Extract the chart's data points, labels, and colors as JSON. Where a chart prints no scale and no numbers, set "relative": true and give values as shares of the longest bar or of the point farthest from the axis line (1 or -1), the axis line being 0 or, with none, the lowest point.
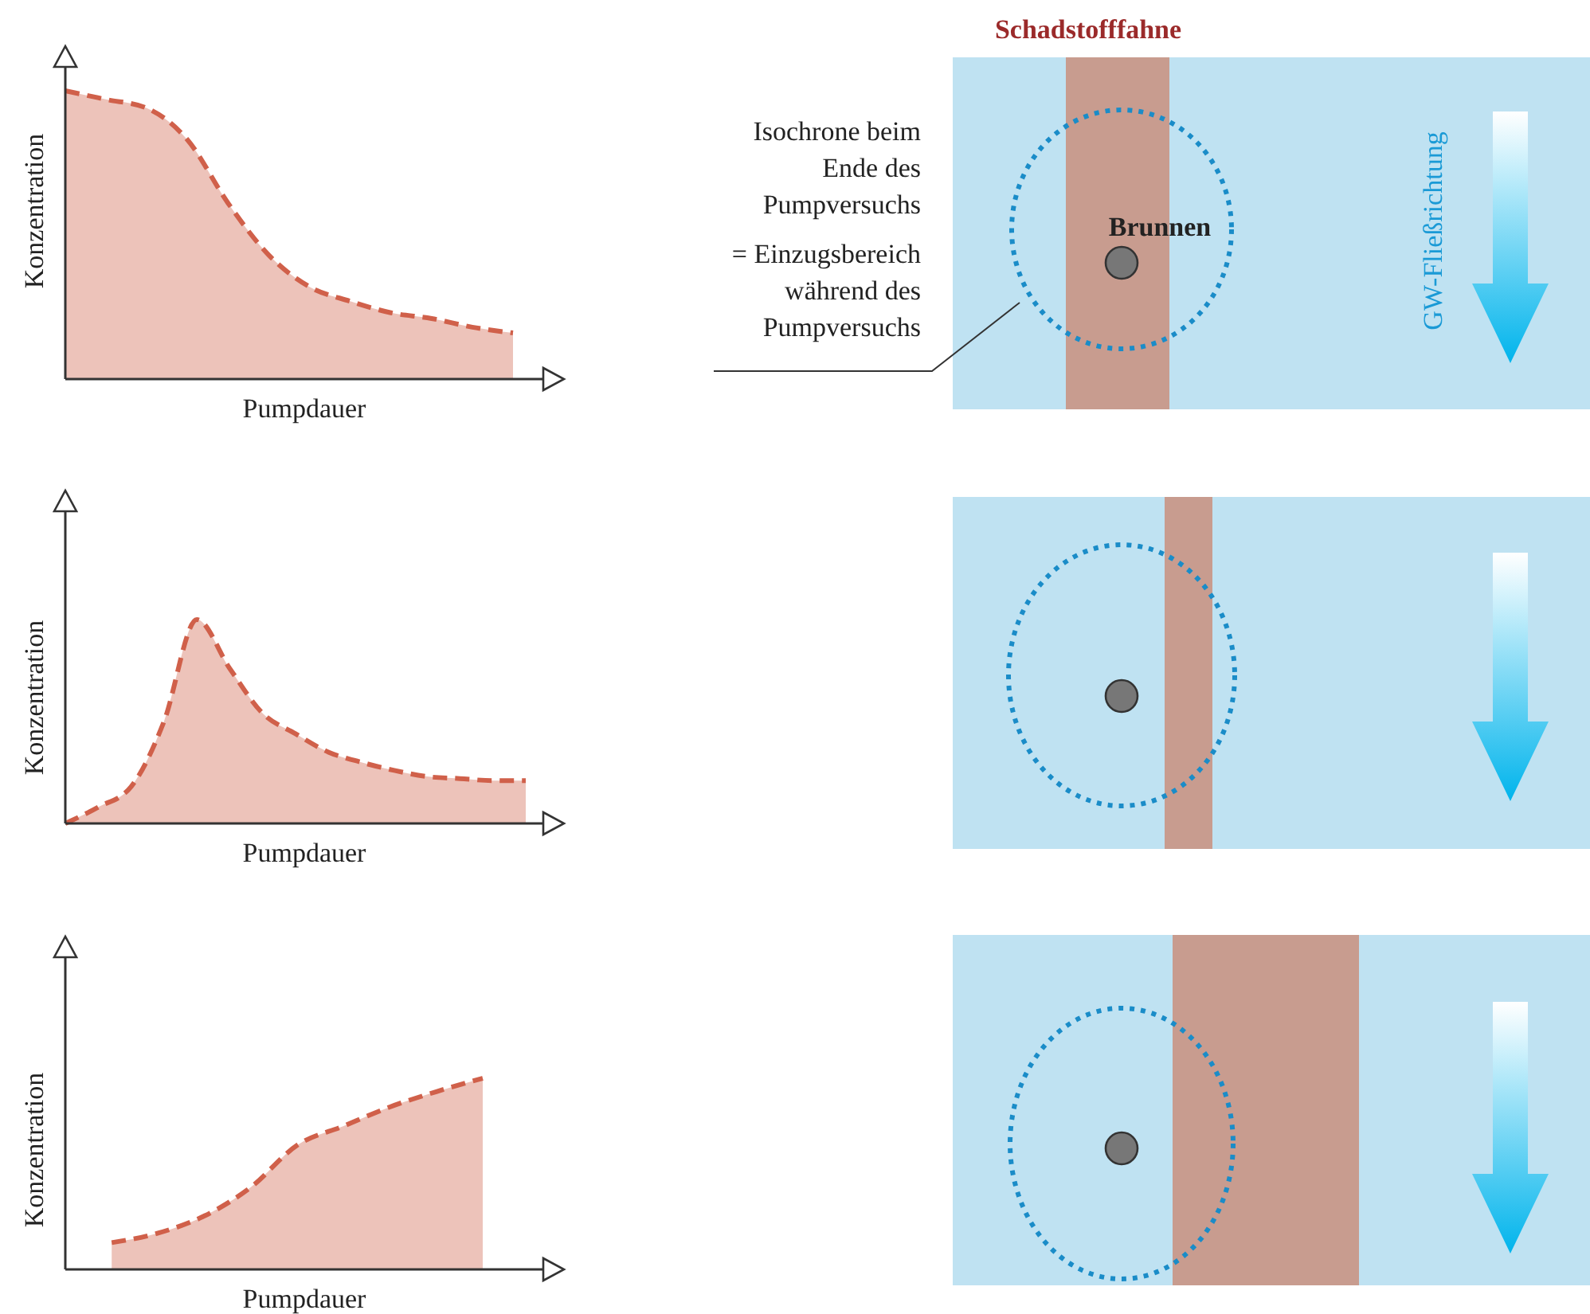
{
  "chart_data": [
    {
      "type": "area",
      "relative": true,
      "line_style": "dashed",
      "xlabel": "Pumpdauer",
      "ylabel": "Konzentration",
      "categories": [
        null,
        null,
        null,
        null,
        null,
        null,
        null,
        null,
        null,
        null,
        null,
        null
      ],
      "series": [
        {
          "color": "#d0604a",
          "values": [
            1,
            0.97,
            0.94,
            0.83,
            0.61,
            0.43,
            0.32,
            0.27,
            0.23,
            0.21,
            0.18,
            0.16
          ]
        }
      ],
      "annotations": [
        "Schadstofffahne",
        "Isochrone beim\nEnde des\nPumpversuchs",
        "= Einzugsbereich\nwährend des\nPumpversuchs",
        "Brunnen",
        "GW-Fließrichtung"
      ]
    },
    {
      "type": "area",
      "relative": true,
      "line_style": "dashed",
      "xlabel": "Pumpdauer",
      "ylabel": "Konzentration",
      "categories": [
        null,
        null,
        null,
        null,
        null,
        null,
        null,
        null,
        null,
        null,
        null,
        null,
        null,
        null,
        null
      ],
      "series": [
        {
          "color": "#d0604a",
          "values": [
            0,
            0.08,
            0.18,
            0.5,
            1,
            0.76,
            0.54,
            0.44,
            0.35,
            0.3,
            0.26,
            0.23,
            0.22,
            0.21,
            0.21
          ]
        }
      ]
    },
    {
      "type": "area",
      "relative": true,
      "line_style": "dashed",
      "xlabel": "Pumpdauer",
      "ylabel": "Konzentration",
      "categories": [
        null,
        null,
        null,
        null,
        null,
        null,
        null,
        null,
        null,
        null
      ],
      "series": [
        {
          "color": "#d0604a",
          "values": [
            null,
            0.14,
            0.19,
            0.28,
            0.43,
            0.65,
            0.75,
            0.85,
            0.93,
            1
          ]
        }
      ]
    }
  ]
}
